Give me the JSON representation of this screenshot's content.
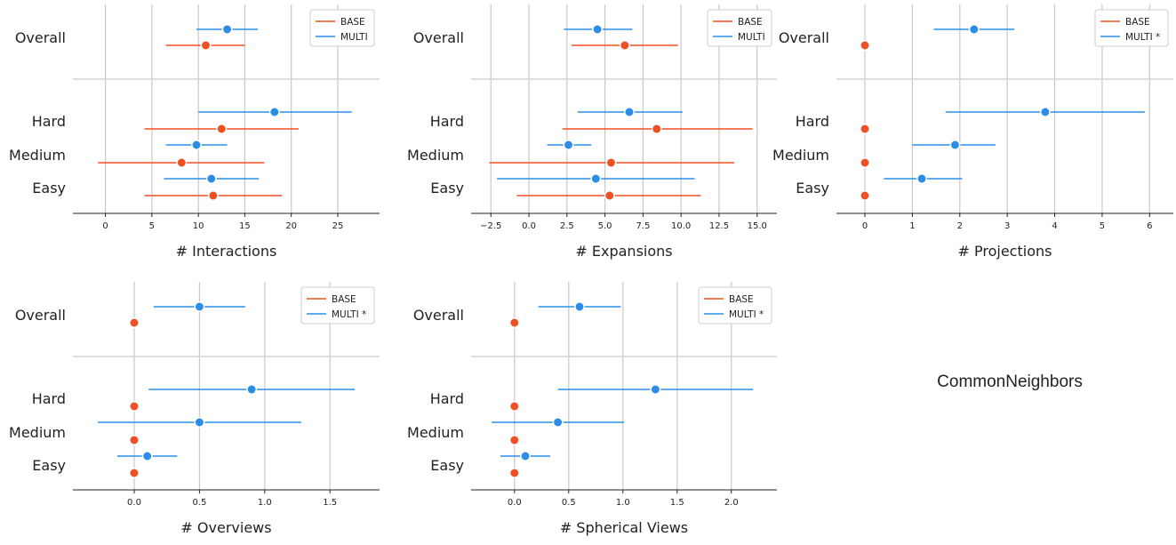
{
  "colors": {
    "base": "#f04e23",
    "multi": "#2b8de8"
  },
  "annotation": "CommonNeighbors",
  "chart_data": [
    {
      "type": "dot-errorbar",
      "xlabel": "# Interactions",
      "xlim": [
        -3.5,
        29.5
      ],
      "xticks": [
        0,
        5,
        10,
        15,
        20,
        25
      ],
      "xtick_labels": [
        "0",
        "5",
        "10",
        "15",
        "20",
        "25"
      ],
      "categories": [
        "Overall",
        "Hard",
        "Medium",
        "Easy"
      ],
      "legend": {
        "location": "top-right",
        "entries": [
          "BASE",
          "MULTI"
        ]
      },
      "grid": true,
      "series": [
        {
          "name": "BASE",
          "color": "#f04e23",
          "mean": [
            10.8,
            12.5,
            8.2,
            11.6
          ],
          "lower": [
            6.5,
            4.2,
            -0.8,
            4.2
          ],
          "upper": [
            15.0,
            20.8,
            17.1,
            19.0
          ]
        },
        {
          "name": "MULTI",
          "color": "#2b8de8",
          "mean": [
            13.1,
            18.2,
            9.8,
            11.4
          ],
          "lower": [
            9.8,
            10.0,
            6.5,
            6.3
          ],
          "upper": [
            16.4,
            26.5,
            13.1,
            16.5
          ]
        }
      ]
    },
    {
      "type": "dot-errorbar",
      "xlabel": "# Expansions",
      "xlim": [
        -3.8,
        16.3
      ],
      "xticks": [
        -2.5,
        0,
        2.5,
        5,
        7.5,
        10,
        12.5,
        15
      ],
      "xtick_labels": [
        "−2.5",
        "0.0",
        "2.5",
        "5.0",
        "7.5",
        "10.0",
        "12.5",
        "15.0"
      ],
      "categories": [
        "Overall",
        "Hard",
        "Medium",
        "Easy"
      ],
      "legend": {
        "location": "top-right",
        "entries": [
          "BASE",
          "MULTI"
        ]
      },
      "grid": true,
      "series": [
        {
          "name": "BASE",
          "color": "#f04e23",
          "mean": [
            6.3,
            8.4,
            5.4,
            5.3
          ],
          "lower": [
            2.8,
            2.2,
            -2.6,
            -0.8
          ],
          "upper": [
            9.8,
            14.7,
            13.5,
            11.3
          ]
        },
        {
          "name": "MULTI",
          "color": "#2b8de8",
          "mean": [
            4.5,
            6.6,
            2.6,
            4.4
          ],
          "lower": [
            2.3,
            3.2,
            1.2,
            -2.1
          ],
          "upper": [
            6.8,
            10.1,
            4.1,
            10.9
          ]
        }
      ]
    },
    {
      "type": "dot-errorbar",
      "xlabel": "# Projections",
      "xlim": [
        -0.6,
        6.5
      ],
      "xticks": [
        0,
        1,
        2,
        3,
        4,
        5,
        6
      ],
      "xtick_labels": [
        "0",
        "1",
        "2",
        "3",
        "4",
        "5",
        "6"
      ],
      "categories": [
        "Overall",
        "Hard",
        "Medium",
        "Easy"
      ],
      "legend": {
        "location": "top-right",
        "entries": [
          "BASE",
          "MULTI *"
        ]
      },
      "grid": true,
      "series": [
        {
          "name": "BASE",
          "color": "#f04e23",
          "mean": [
            0,
            0,
            0,
            0
          ],
          "lower": [
            0,
            0,
            0,
            0
          ],
          "upper": [
            0,
            0,
            0,
            0
          ]
        },
        {
          "name": "MULTI *",
          "color": "#2b8de8",
          "mean": [
            2.3,
            3.8,
            1.9,
            1.2
          ],
          "lower": [
            1.45,
            1.7,
            1.0,
            0.4
          ],
          "upper": [
            3.15,
            5.9,
            2.75,
            2.05
          ]
        }
      ]
    },
    {
      "type": "dot-errorbar",
      "xlabel": "# Overviews",
      "xlim": [
        -0.47,
        1.88
      ],
      "xticks": [
        0,
        0.5,
        1.0,
        1.5
      ],
      "xtick_labels": [
        "0.0",
        "0.5",
        "1.0",
        "1.5"
      ],
      "categories": [
        "Overall",
        "Hard",
        "Medium",
        "Easy"
      ],
      "legend": {
        "location": "top-right",
        "entries": [
          "BASE",
          "MULTI *"
        ]
      },
      "grid": true,
      "series": [
        {
          "name": "BASE",
          "color": "#f04e23",
          "mean": [
            0,
            0,
            0,
            0
          ],
          "lower": [
            0,
            0,
            0,
            0
          ],
          "upper": [
            0,
            0,
            0,
            0
          ]
        },
        {
          "name": "MULTI *",
          "color": "#2b8de8",
          "mean": [
            0.5,
            0.9,
            0.5,
            0.1
          ],
          "lower": [
            0.15,
            0.11,
            -0.28,
            -0.13
          ],
          "upper": [
            0.85,
            1.69,
            1.28,
            0.33
          ]
        }
      ]
    },
    {
      "type": "dot-errorbar",
      "xlabel": "# Spherical Views",
      "xlim": [
        -0.4,
        2.42
      ],
      "xticks": [
        0,
        0.5,
        1.0,
        1.5,
        2.0
      ],
      "xtick_labels": [
        "0.0",
        "0.5",
        "1.0",
        "1.5",
        "2.0"
      ],
      "categories": [
        "Overall",
        "Hard",
        "Medium",
        "Easy"
      ],
      "legend": {
        "location": "top-right",
        "entries": [
          "BASE",
          "MULTI *"
        ]
      },
      "grid": true,
      "series": [
        {
          "name": "BASE",
          "color": "#f04e23",
          "mean": [
            0,
            0,
            0,
            0
          ],
          "lower": [
            0,
            0,
            0,
            0
          ],
          "upper": [
            0,
            0,
            0,
            0
          ]
        },
        {
          "name": "MULTI *",
          "color": "#2b8de8",
          "mean": [
            0.6,
            1.3,
            0.4,
            0.1
          ],
          "lower": [
            0.22,
            0.4,
            -0.21,
            -0.13
          ],
          "upper": [
            0.98,
            2.2,
            1.01,
            0.33
          ]
        }
      ]
    }
  ]
}
